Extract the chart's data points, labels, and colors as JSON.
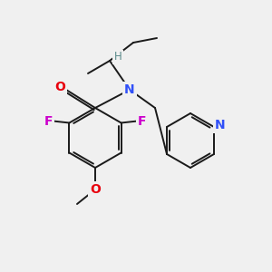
{
  "bg_color": "#f0f0f0",
  "bond_color": "#1a1a1a",
  "atom_colors": {
    "O": "#e8000d",
    "N": "#3050f8",
    "F": "#cc00cc",
    "N_py": "#3050f8",
    "H": "#5a8a8a"
  },
  "lw": 1.4,
  "fontsize": 9.5
}
